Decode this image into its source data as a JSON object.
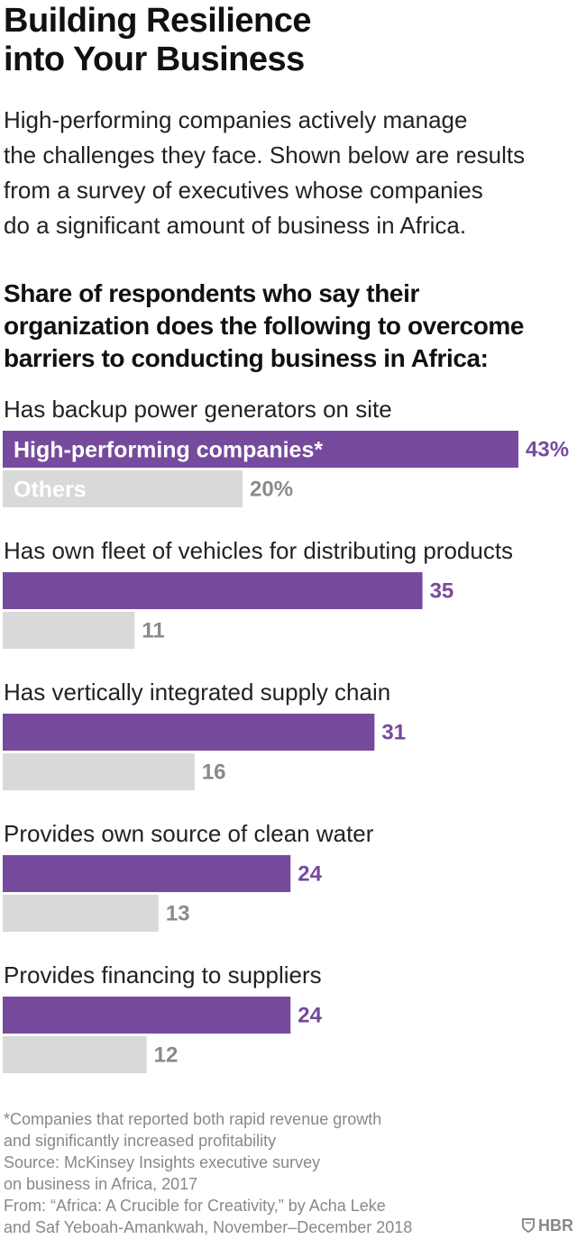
{
  "header": {
    "title_line1": "Building Resilience",
    "title_line2": "into Your Business",
    "subtitle_lines": [
      "High-performing companies actively manage",
      "the challenges they face. Shown below are results",
      "from a survey of executives whose companies",
      "do a significant amount of business in Africa."
    ],
    "chart_heading_lines": [
      "Share of respondents who say their",
      "organization does the following to overcome",
      "barriers to conducting business in Africa:"
    ]
  },
  "colors": {
    "high_performing": "#764a9c",
    "others": "#d9d9d9",
    "high_label": "#764a9c",
    "others_label": "#8a8a8a"
  },
  "chart_data": {
    "type": "bar",
    "orientation": "horizontal",
    "unit": "%",
    "categories": [
      "Has backup power generators on site",
      "Has own fleet of vehicles for distributing products",
      "Has vertically integrated supply chain",
      "Provides own source of clean water",
      "Provides financing to suppliers"
    ],
    "series": [
      {
        "name": "High-performing companies*",
        "values": [
          43,
          35,
          31,
          24,
          24
        ],
        "labels": [
          "43%",
          "35",
          "31",
          "24",
          "24"
        ]
      },
      {
        "name": "Others",
        "values": [
          20,
          11,
          16,
          13,
          12
        ],
        "labels": [
          "20%",
          "11",
          "16",
          "13",
          "12"
        ]
      }
    ],
    "xlim": [
      0,
      43
    ],
    "legend": "inside-first-bars"
  },
  "footnote": {
    "lines": [
      "*Companies that reported both rapid revenue growth",
      "and significantly increased profitability",
      "Source: McKinsey Insights executive survey",
      "on business in Africa, 2017",
      "From: “Africa: A Crucible for Creativity,” by Acha Leke",
      "and Saf Yeboah-Amankwah, November–December 2018"
    ]
  },
  "logo": {
    "text": "HBR",
    "icon": "hbr-shield-icon"
  }
}
